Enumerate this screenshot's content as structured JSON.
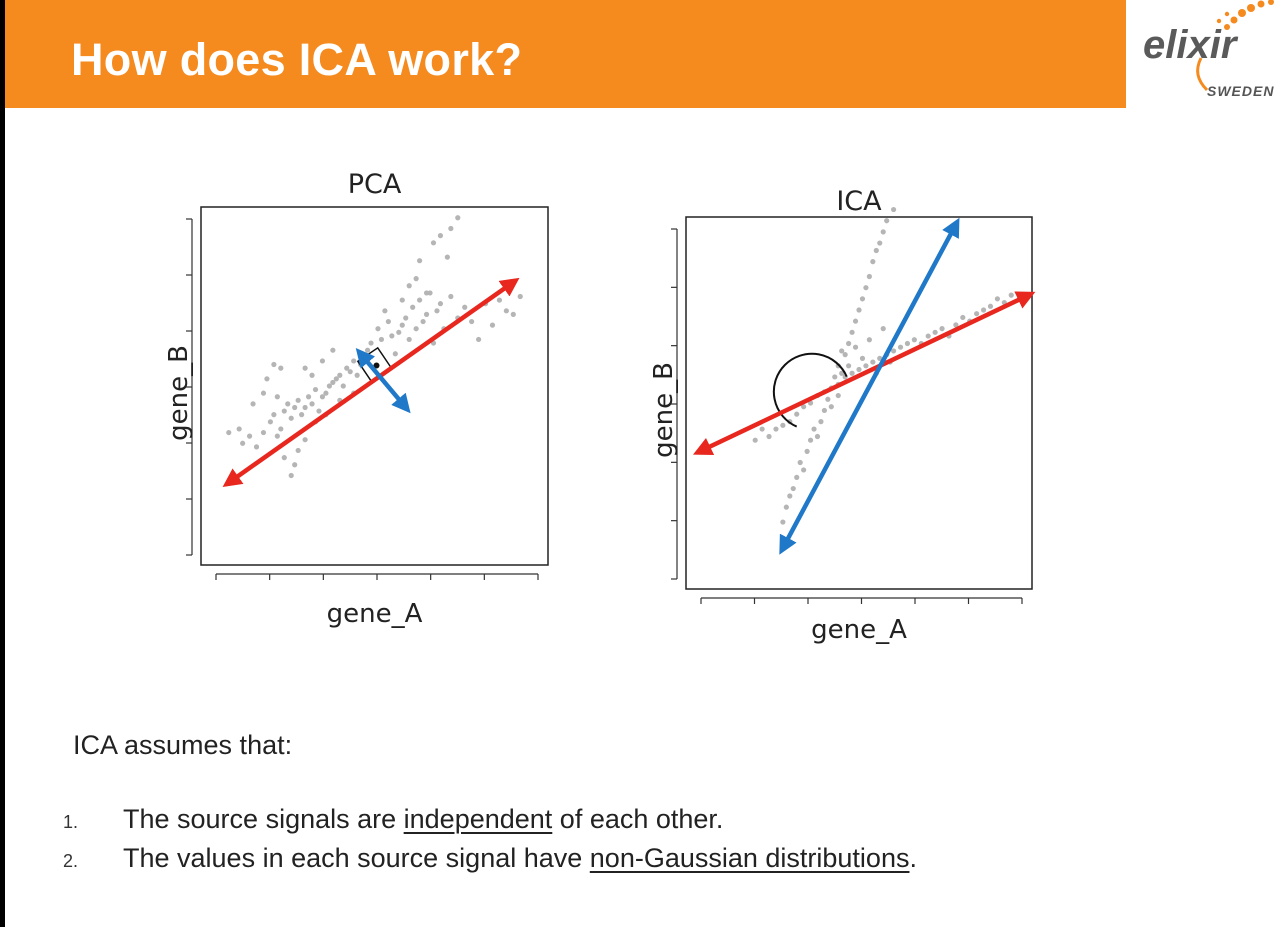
{
  "slide": {
    "title": "How does ICA work?",
    "logo": {
      "text": "elixir",
      "subtext": "SWEDEN"
    },
    "assumption_intro": "ICA assumes that:",
    "assumptions": [
      {
        "number": "1.",
        "before": "The source signals are ",
        "underlined": "independent",
        "after": " of each other."
      },
      {
        "number": "2.",
        "before": "The values in each source signal have ",
        "underlined": "non-Gaussian distributions",
        "after": "."
      }
    ]
  },
  "colors": {
    "title_bar": "#f58a1f",
    "first_component": "#e8271e",
    "second_component": "#1f78c8",
    "points": "#b5b5b5"
  },
  "chart_data": [
    {
      "type": "scatter",
      "title": "PCA",
      "xlabel": "gene_A",
      "ylabel": "gene_B",
      "xlim": [
        0,
        100
      ],
      "ylim": [
        0,
        100
      ],
      "grid": false,
      "tick_labels_shown": false,
      "points": [
        [
          8,
          37
        ],
        [
          11,
          38
        ],
        [
          12,
          34
        ],
        [
          14,
          36
        ],
        [
          16,
          33
        ],
        [
          18,
          37
        ],
        [
          20,
          40
        ],
        [
          21,
          42
        ],
        [
          22,
          36
        ],
        [
          23,
          38
        ],
        [
          24,
          43
        ],
        [
          25,
          45
        ],
        [
          26,
          41
        ],
        [
          27,
          44
        ],
        [
          28,
          46
        ],
        [
          29,
          42
        ],
        [
          30,
          44
        ],
        [
          31,
          47
        ],
        [
          32,
          45
        ],
        [
          33,
          49
        ],
        [
          34,
          43
        ],
        [
          35,
          47
        ],
        [
          36,
          48
        ],
        [
          37,
          50
        ],
        [
          38,
          51
        ],
        [
          39,
          52
        ],
        [
          40,
          53
        ],
        [
          41,
          50
        ],
        [
          42,
          55
        ],
        [
          43,
          54
        ],
        [
          44,
          57
        ],
        [
          45,
          53
        ],
        [
          46,
          56
        ],
        [
          47,
          58
        ],
        [
          48,
          60
        ],
        [
          49,
          62
        ],
        [
          50,
          57
        ],
        [
          51,
          66
        ],
        [
          52,
          63
        ],
        [
          53,
          71
        ],
        [
          54,
          68
        ],
        [
          55,
          64
        ],
        [
          56,
          59
        ],
        [
          57,
          65
        ],
        [
          58,
          67
        ],
        [
          59,
          69
        ],
        [
          60,
          63
        ],
        [
          61,
          72
        ],
        [
          62,
          66
        ],
        [
          63,
          74
        ],
        [
          64,
          68
        ],
        [
          65,
          70
        ],
        [
          66,
          76
        ],
        [
          67,
          62
        ],
        [
          68,
          71
        ],
        [
          69,
          73
        ],
        [
          70,
          66
        ],
        [
          72,
          75
        ],
        [
          74,
          69
        ],
        [
          76,
          72
        ],
        [
          78,
          68
        ],
        [
          80,
          63
        ],
        [
          82,
          73
        ],
        [
          84,
          67
        ],
        [
          86,
          74
        ],
        [
          88,
          71
        ],
        [
          90,
          70
        ],
        [
          92,
          75
        ],
        [
          15,
          45
        ],
        [
          18,
          48
        ],
        [
          19,
          52
        ],
        [
          22,
          47
        ],
        [
          24,
          30
        ],
        [
          26,
          25
        ],
        [
          27,
          28
        ],
        [
          28,
          32
        ],
        [
          30,
          35
        ],
        [
          33,
          40
        ],
        [
          36,
          42
        ],
        [
          40,
          46
        ],
        [
          44,
          48
        ],
        [
          48,
          54
        ],
        [
          52,
          58
        ],
        [
          54,
          55
        ],
        [
          58,
          74
        ],
        [
          60,
          78
        ],
        [
          62,
          80
        ],
        [
          63,
          85
        ],
        [
          65,
          76
        ],
        [
          67,
          90
        ],
        [
          69,
          92
        ],
        [
          71,
          86
        ],
        [
          72,
          94
        ],
        [
          74,
          97
        ],
        [
          30,
          55
        ],
        [
          32,
          53
        ],
        [
          35,
          57
        ],
        [
          38,
          60
        ],
        [
          23,
          55
        ],
        [
          21,
          56
        ]
      ],
      "components": [
        {
          "name": "",
          "from": [
            8,
            23
          ],
          "to": [
            90,
            79
          ],
          "color": "#e8271e"
        },
        {
          "name": "",
          "from": [
            46,
            59
          ],
          "to": [
            59,
            44
          ],
          "color": "#1f78c8"
        }
      ],
      "annotation": "right-angle-marker"
    },
    {
      "type": "scatter",
      "title": "ICA",
      "xlabel": "gene_A",
      "ylabel": "gene_B",
      "xlim": [
        0,
        100
      ],
      "ylim": [
        0,
        100
      ],
      "grid": false,
      "tick_labels_shown": false,
      "points": [
        [
          28,
          18
        ],
        [
          29,
          22
        ],
        [
          30,
          25
        ],
        [
          31,
          27
        ],
        [
          32,
          30
        ],
        [
          33,
          34
        ],
        [
          34,
          32
        ],
        [
          35,
          37
        ],
        [
          36,
          40
        ],
        [
          37,
          43
        ],
        [
          38,
          41
        ],
        [
          39,
          45
        ],
        [
          40,
          48
        ],
        [
          41,
          51
        ],
        [
          42,
          54
        ],
        [
          43,
          57
        ],
        [
          44,
          60
        ],
        [
          45,
          58
        ],
        [
          46,
          63
        ],
        [
          47,
          66
        ],
        [
          48,
          69
        ],
        [
          49,
          72
        ],
        [
          50,
          75
        ],
        [
          51,
          78
        ],
        [
          52,
          81
        ],
        [
          53,
          84
        ],
        [
          54,
          88
        ],
        [
          55,
          91
        ],
        [
          56,
          93
        ],
        [
          57,
          96
        ],
        [
          58,
          99
        ],
        [
          60,
          102
        ],
        [
          24,
          41
        ],
        [
          26,
          43
        ],
        [
          28,
          44
        ],
        [
          30,
          45
        ],
        [
          32,
          47
        ],
        [
          34,
          49
        ],
        [
          36,
          50
        ],
        [
          38,
          52
        ],
        [
          40,
          53
        ],
        [
          42,
          54
        ],
        [
          44,
          55
        ],
        [
          46,
          57
        ],
        [
          48,
          58
        ],
        [
          50,
          59
        ],
        [
          52,
          60
        ],
        [
          54,
          61
        ],
        [
          56,
          62
        ],
        [
          58,
          63
        ],
        [
          60,
          64
        ],
        [
          62,
          65
        ],
        [
          64,
          66
        ],
        [
          66,
          67
        ],
        [
          68,
          66
        ],
        [
          70,
          68
        ],
        [
          72,
          69
        ],
        [
          74,
          70
        ],
        [
          76,
          68
        ],
        [
          78,
          71
        ],
        [
          80,
          73
        ],
        [
          82,
          72
        ],
        [
          84,
          74
        ],
        [
          86,
          75
        ],
        [
          88,
          76
        ],
        [
          90,
          78
        ],
        [
          92,
          77
        ],
        [
          94,
          79
        ],
        [
          20,
          40
        ],
        [
          22,
          43
        ],
        [
          45,
          64
        ],
        [
          47,
          60
        ],
        [
          49,
          65
        ],
        [
          51,
          62
        ],
        [
          53,
          67
        ],
        [
          55,
          58
        ],
        [
          57,
          70
        ],
        [
          59,
          61
        ],
        [
          44,
          52
        ],
        [
          42,
          49
        ]
      ],
      "components": [
        {
          "name": "",
          "from": [
            99,
            79
          ],
          "to": [
            4,
            37
          ],
          "color": "#e8271e"
        },
        {
          "name": "",
          "from": [
            78,
            98
          ],
          "to": [
            28,
            11
          ],
          "color": "#1f78c8"
        }
      ],
      "annotation": "angle-arc"
    }
  ]
}
